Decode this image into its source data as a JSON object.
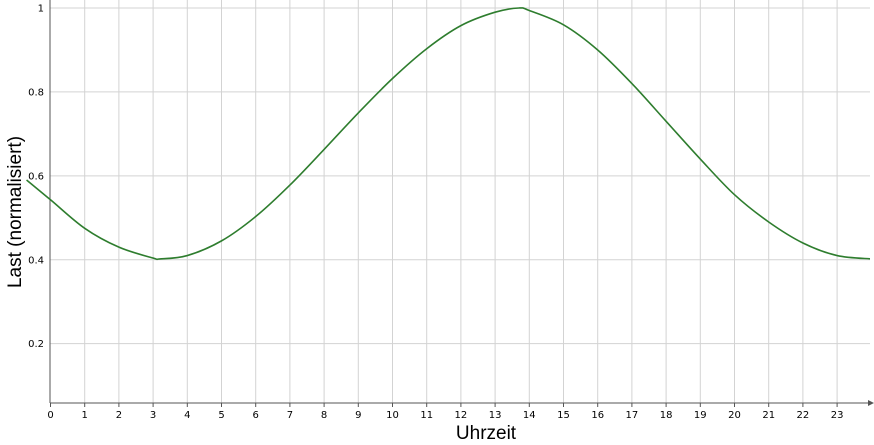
{
  "chart_data": {
    "type": "line",
    "title": "",
    "xlabel": "Uhrzeit",
    "ylabel": "Last (normalisiert)",
    "xlim": [
      0,
      24
    ],
    "ylim": [
      0.05,
      1.0
    ],
    "x_ticks": [
      0,
      1,
      2,
      3,
      4,
      5,
      6,
      7,
      8,
      9,
      10,
      11,
      12,
      13,
      14,
      15,
      16,
      17,
      18,
      19,
      20,
      21,
      22,
      23
    ],
    "y_ticks": [
      0.2,
      0.4,
      0.6,
      0.8,
      1
    ],
    "y_tick_labels": [
      "0.2",
      "0.4",
      "0.6",
      "0.8",
      "1"
    ],
    "grid": true,
    "legend": "none",
    "line_color": "#2e7d2e",
    "series": [
      {
        "x": [
          -0.7,
          0,
          1,
          2,
          3,
          3.2,
          4,
          5,
          6,
          7,
          8,
          9,
          10,
          11,
          12,
          13,
          13.7,
          14,
          15,
          16,
          17,
          18,
          19,
          20,
          21,
          22,
          23,
          24
        ],
        "values": [
          0.59,
          0.543,
          0.475,
          0.43,
          0.404,
          0.402,
          0.41,
          0.445,
          0.503,
          0.578,
          0.663,
          0.75,
          0.832,
          0.903,
          0.958,
          0.99,
          1.0,
          0.994,
          0.96,
          0.9,
          0.82,
          0.73,
          0.64,
          0.555,
          0.49,
          0.44,
          0.41,
          0.402
        ]
      }
    ]
  }
}
